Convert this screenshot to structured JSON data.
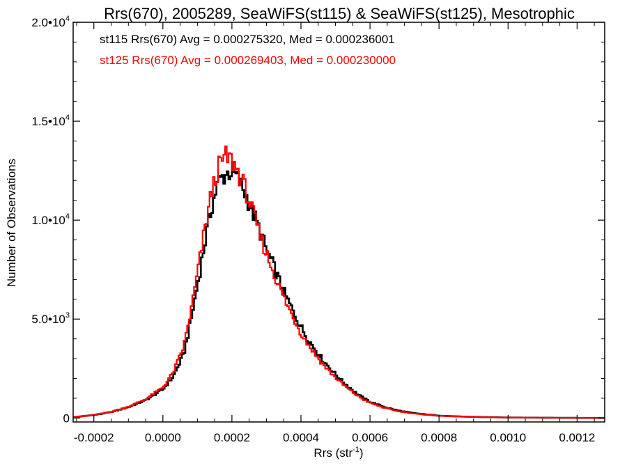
{
  "chart_data": {
    "type": "line",
    "title": "Rrs(670), 2005289, SeaWiFS(st115) & SeaWiFS(st125), Mesotrophic",
    "xlabel": "Rrs (str",
    "xlabel_sup": "-1",
    "xlabel_suffix": ")",
    "ylabel": "Number of Observations",
    "xlim": [
      -0.00026,
      0.00128
    ],
    "ylim": [
      -200,
      20000
    ],
    "grid": false,
    "x_tick_labels": [
      {
        "value": -0.0002,
        "label": "-0.0002"
      },
      {
        "value": 0.0,
        "label": "0.0000"
      },
      {
        "value": 0.0002,
        "label": "0.0002"
      },
      {
        "value": 0.0004,
        "label": "0.0004"
      },
      {
        "value": 0.0006,
        "label": "0.0006"
      },
      {
        "value": 0.0008,
        "label": "0.0008"
      },
      {
        "value": 0.001,
        "label": "0.0010"
      },
      {
        "value": 0.0012,
        "label": "0.0012"
      }
    ],
    "y_tick_labels": [
      {
        "value": 0,
        "base": "0",
        "exp": ""
      },
      {
        "value": 5000,
        "base": "5.0•10",
        "exp": "3"
      },
      {
        "value": 10000,
        "base": "1.0•10",
        "exp": "4"
      },
      {
        "value": 15000,
        "base": "1.5•10",
        "exp": "4"
      },
      {
        "value": 20000,
        "base": "2.0•10",
        "exp": "4"
      }
    ],
    "legend": [
      {
        "text": "st115 Rrs(670) Avg = 0.000275320, Med = 0.000236001",
        "color": "#000000"
      },
      {
        "text": "st125 Rrs(670) Avg = 0.000269403, Med = 0.000230000",
        "color": "#ff0000"
      }
    ],
    "legend_placement": "top-left",
    "series": [
      {
        "color": "#000000",
        "points": [
          [
            -0.00026,
            40
          ],
          [
            -0.0002,
            150
          ],
          [
            -0.00015,
            300
          ],
          [
            -0.0001,
            550
          ],
          [
            -5e-05,
            900
          ],
          [
            0.0,
            1450
          ],
          [
            3e-05,
            2100
          ],
          [
            6e-05,
            3200
          ],
          [
            8e-05,
            4800
          ],
          [
            0.0001,
            6700
          ],
          [
            0.00012,
            8700
          ],
          [
            0.00014,
            10600
          ],
          [
            0.00016,
            11900
          ],
          [
            0.00018,
            12300
          ],
          [
            0.0002,
            12500
          ],
          [
            0.00022,
            12000
          ],
          [
            0.00024,
            11300
          ],
          [
            0.00026,
            10400
          ],
          [
            0.00028,
            9500
          ],
          [
            0.0003,
            8500
          ],
          [
            0.00032,
            7700
          ],
          [
            0.00034,
            6800
          ],
          [
            0.00036,
            6000
          ],
          [
            0.00038,
            5300
          ],
          [
            0.0004,
            4600
          ],
          [
            0.00042,
            4000
          ],
          [
            0.00044,
            3500
          ],
          [
            0.00046,
            3000
          ],
          [
            0.00048,
            2600
          ],
          [
            0.0005,
            2200
          ],
          [
            0.00052,
            1850
          ],
          [
            0.00054,
            1550
          ],
          [
            0.00056,
            1250
          ],
          [
            0.00058,
            1020
          ],
          [
            0.0006,
            820
          ],
          [
            0.00064,
            560
          ],
          [
            0.00068,
            380
          ],
          [
            0.00072,
            260
          ],
          [
            0.00076,
            180
          ],
          [
            0.0008,
            120
          ],
          [
            0.00085,
            80
          ],
          [
            0.0009,
            55
          ],
          [
            0.00095,
            38
          ],
          [
            0.001,
            25
          ],
          [
            0.0011,
            14
          ],
          [
            0.0012,
            7
          ],
          [
            0.00128,
            4
          ]
        ]
      },
      {
        "color": "#ff0000",
        "points": [
          [
            -0.00026,
            40
          ],
          [
            -0.0002,
            150
          ],
          [
            -0.00015,
            310
          ],
          [
            -0.0001,
            570
          ],
          [
            -5e-05,
            950
          ],
          [
            0.0,
            1550
          ],
          [
            3e-05,
            2300
          ],
          [
            6e-05,
            3600
          ],
          [
            8e-05,
            5300
          ],
          [
            0.0001,
            7300
          ],
          [
            0.00012,
            9400
          ],
          [
            0.00014,
            11300
          ],
          [
            0.00016,
            12600
          ],
          [
            0.00018,
            13200
          ],
          [
            0.0002,
            13000
          ],
          [
            0.00022,
            12400
          ],
          [
            0.00024,
            11500
          ],
          [
            0.00026,
            10400
          ],
          [
            0.00028,
            9300
          ],
          [
            0.0003,
            8300
          ],
          [
            0.00032,
            7400
          ],
          [
            0.00034,
            6500
          ],
          [
            0.00036,
            5700
          ],
          [
            0.00038,
            5000
          ],
          [
            0.0004,
            4300
          ],
          [
            0.00042,
            3750
          ],
          [
            0.00044,
            3250
          ],
          [
            0.00046,
            2800
          ],
          [
            0.00048,
            2400
          ],
          [
            0.0005,
            2050
          ],
          [
            0.00052,
            1720
          ],
          [
            0.00054,
            1430
          ],
          [
            0.00056,
            1170
          ],
          [
            0.00058,
            950
          ],
          [
            0.0006,
            770
          ],
          [
            0.00064,
            520
          ],
          [
            0.00068,
            350
          ],
          [
            0.00072,
            240
          ],
          [
            0.00076,
            165
          ],
          [
            0.0008,
            110
          ],
          [
            0.00085,
            75
          ],
          [
            0.0009,
            50
          ],
          [
            0.00095,
            34
          ],
          [
            0.001,
            23
          ],
          [
            0.0011,
            13
          ],
          [
            0.0012,
            6
          ],
          [
            0.00128,
            3
          ]
        ]
      }
    ]
  }
}
